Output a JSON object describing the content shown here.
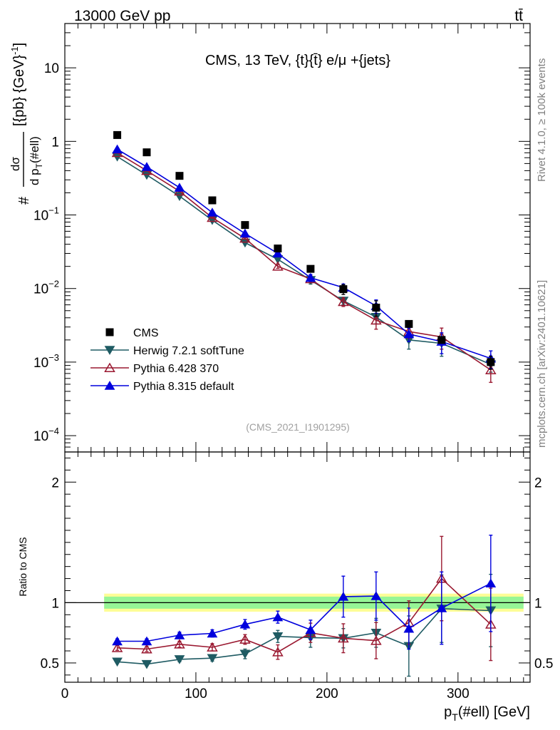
{
  "header": {
    "left": "13000 GeV pp",
    "right": "tt̄"
  },
  "side_text": {
    "rivet": "Rivet 4.1.0, ≥ 100k events",
    "mcplots": "mcplots.cern.ch [arXiv:2401.10621]"
  },
  "chart_data": {
    "type": "line",
    "title": "CMS, 13 TeV, {t}{t̄} e/μ +{jets}",
    "watermark": "(CMS_2021_I1901295)",
    "xlabel": "p_T(#ell) [GeV]",
    "xlabel_main": "p",
    "xlabel_sub": "T",
    "xlabel_rest": "(#ell) [GeV]",
    "xlim": [
      0,
      355
    ],
    "x_ticks": [
      0,
      100,
      200,
      300
    ],
    "x_tick_labels": [
      "0",
      "100",
      "200",
      "300"
    ],
    "main": {
      "yscale": "log",
      "ylim": [
        6e-05,
        40
      ],
      "ylabel_numerator": "#",
      "ylabel_sigma": "dσ",
      "ylabel_denominator_main": "d p",
      "ylabel_denominator_sub": "T",
      "ylabel_denominator_rest": "(#ell)",
      "ylabel_units": "[{pb} {GeV}",
      "ylabel_units_sup": "-1",
      "ylabel_units_close": "]",
      "y_ticks": [
        0.0001,
        0.001,
        0.01,
        0.1,
        1,
        10
      ],
      "y_tick_labels": [
        {
          "base": "10",
          "exp": "−4"
        },
        {
          "base": "10",
          "exp": "−3"
        },
        {
          "base": "10",
          "exp": "−2"
        },
        {
          "base": "10",
          "exp": "−1"
        },
        {
          "base": "1",
          "exp": ""
        },
        {
          "base": "10",
          "exp": ""
        }
      ]
    },
    "ratio": {
      "ylabel": "Ratio to CMS",
      "ylim": [
        0.34,
        2.25
      ],
      "y_ticks": [
        0.5,
        1,
        2
      ],
      "y_tick_labels": [
        "0.5",
        "1",
        "2"
      ],
      "band_x": [
        30,
        350
      ],
      "band_inner": [
        0.95,
        1.05
      ],
      "band_outer": [
        0.925,
        1.075
      ]
    },
    "legend_position": "bottom-left",
    "x": [
      40,
      62.5,
      87.5,
      112.5,
      137.5,
      162.5,
      187.5,
      212.5,
      237.5,
      262.5,
      287.5,
      325
    ],
    "data": {
      "name": "CMS",
      "values": [
        1.22,
        0.71,
        0.34,
        0.158,
        0.073,
        0.035,
        0.0185,
        0.0098,
        0.0055,
        0.0033,
        0.002,
        0.001
      ],
      "errors": [
        0.02,
        0.01,
        0.005,
        0.003,
        0.0015,
        0.0008,
        0.0005,
        0.0015,
        0.0013,
        0.0002,
        0.0002,
        0.0002
      ]
    },
    "series": [
      {
        "name": "Herwig 7.2.1 softTune",
        "color": "#1f5b63",
        "marker": "triangle-down",
        "values": [
          0.62,
          0.35,
          0.18,
          0.085,
          0.042,
          0.025,
          0.013,
          0.0068,
          0.0041,
          0.002,
          0.0018,
          0.00093
        ],
        "errors": [
          0.01,
          0.005,
          0.004,
          0.002,
          0.001,
          0.001,
          0.0015,
          0.0008,
          0.0008,
          0.0005,
          0.0006,
          0.0002
        ],
        "ratio": [
          0.51,
          0.49,
          0.53,
          0.54,
          0.575,
          0.72,
          0.71,
          0.705,
          0.75,
          0.64,
          0.95,
          0.935
        ],
        "ratio_errors": [
          0.01,
          0.01,
          0.02,
          0.025,
          0.04,
          0.05,
          0.08,
          0.08,
          0.12,
          0.25,
          0.28,
          0.3
        ]
      },
      {
        "name": "Pythia 6.428 370",
        "color": "#9a1830",
        "marker": "triangle-up-open",
        "values": [
          0.7,
          0.4,
          0.21,
          0.092,
          0.048,
          0.02,
          0.0135,
          0.0066,
          0.0037,
          0.0026,
          0.0022,
          0.00078
        ],
        "errors": [
          0.01,
          0.006,
          0.004,
          0.002,
          0.0012,
          0.0012,
          0.0015,
          0.0009,
          0.0009,
          0.0005,
          0.0007,
          0.00025
        ],
        "ratio": [
          0.625,
          0.615,
          0.655,
          0.63,
          0.695,
          0.59,
          0.75,
          0.705,
          0.685,
          0.835,
          1.2,
          0.82
        ],
        "ratio_errors": [
          0.02,
          0.02,
          0.025,
          0.03,
          0.04,
          0.06,
          0.08,
          0.12,
          0.15,
          0.18,
          0.35,
          0.3
        ]
      },
      {
        "name": "Pythia 8.315 default",
        "color": "#0000dd",
        "marker": "triangle-up",
        "values": [
          0.78,
          0.45,
          0.235,
          0.108,
          0.056,
          0.03,
          0.014,
          0.0103,
          0.0058,
          0.0024,
          0.0019,
          0.00112
        ],
        "errors": [
          0.01,
          0.006,
          0.004,
          0.002,
          0.0013,
          0.0012,
          0.0015,
          0.0012,
          0.0012,
          0.0005,
          0.0006,
          0.0003
        ],
        "ratio": [
          0.68,
          0.68,
          0.73,
          0.745,
          0.82,
          0.88,
          0.775,
          1.05,
          1.055,
          0.785,
          0.955,
          1.16
        ],
        "ratio_errors": [
          0.02,
          0.02,
          0.025,
          0.03,
          0.04,
          0.05,
          0.08,
          0.17,
          0.2,
          0.17,
          0.3,
          0.4
        ]
      }
    ]
  }
}
